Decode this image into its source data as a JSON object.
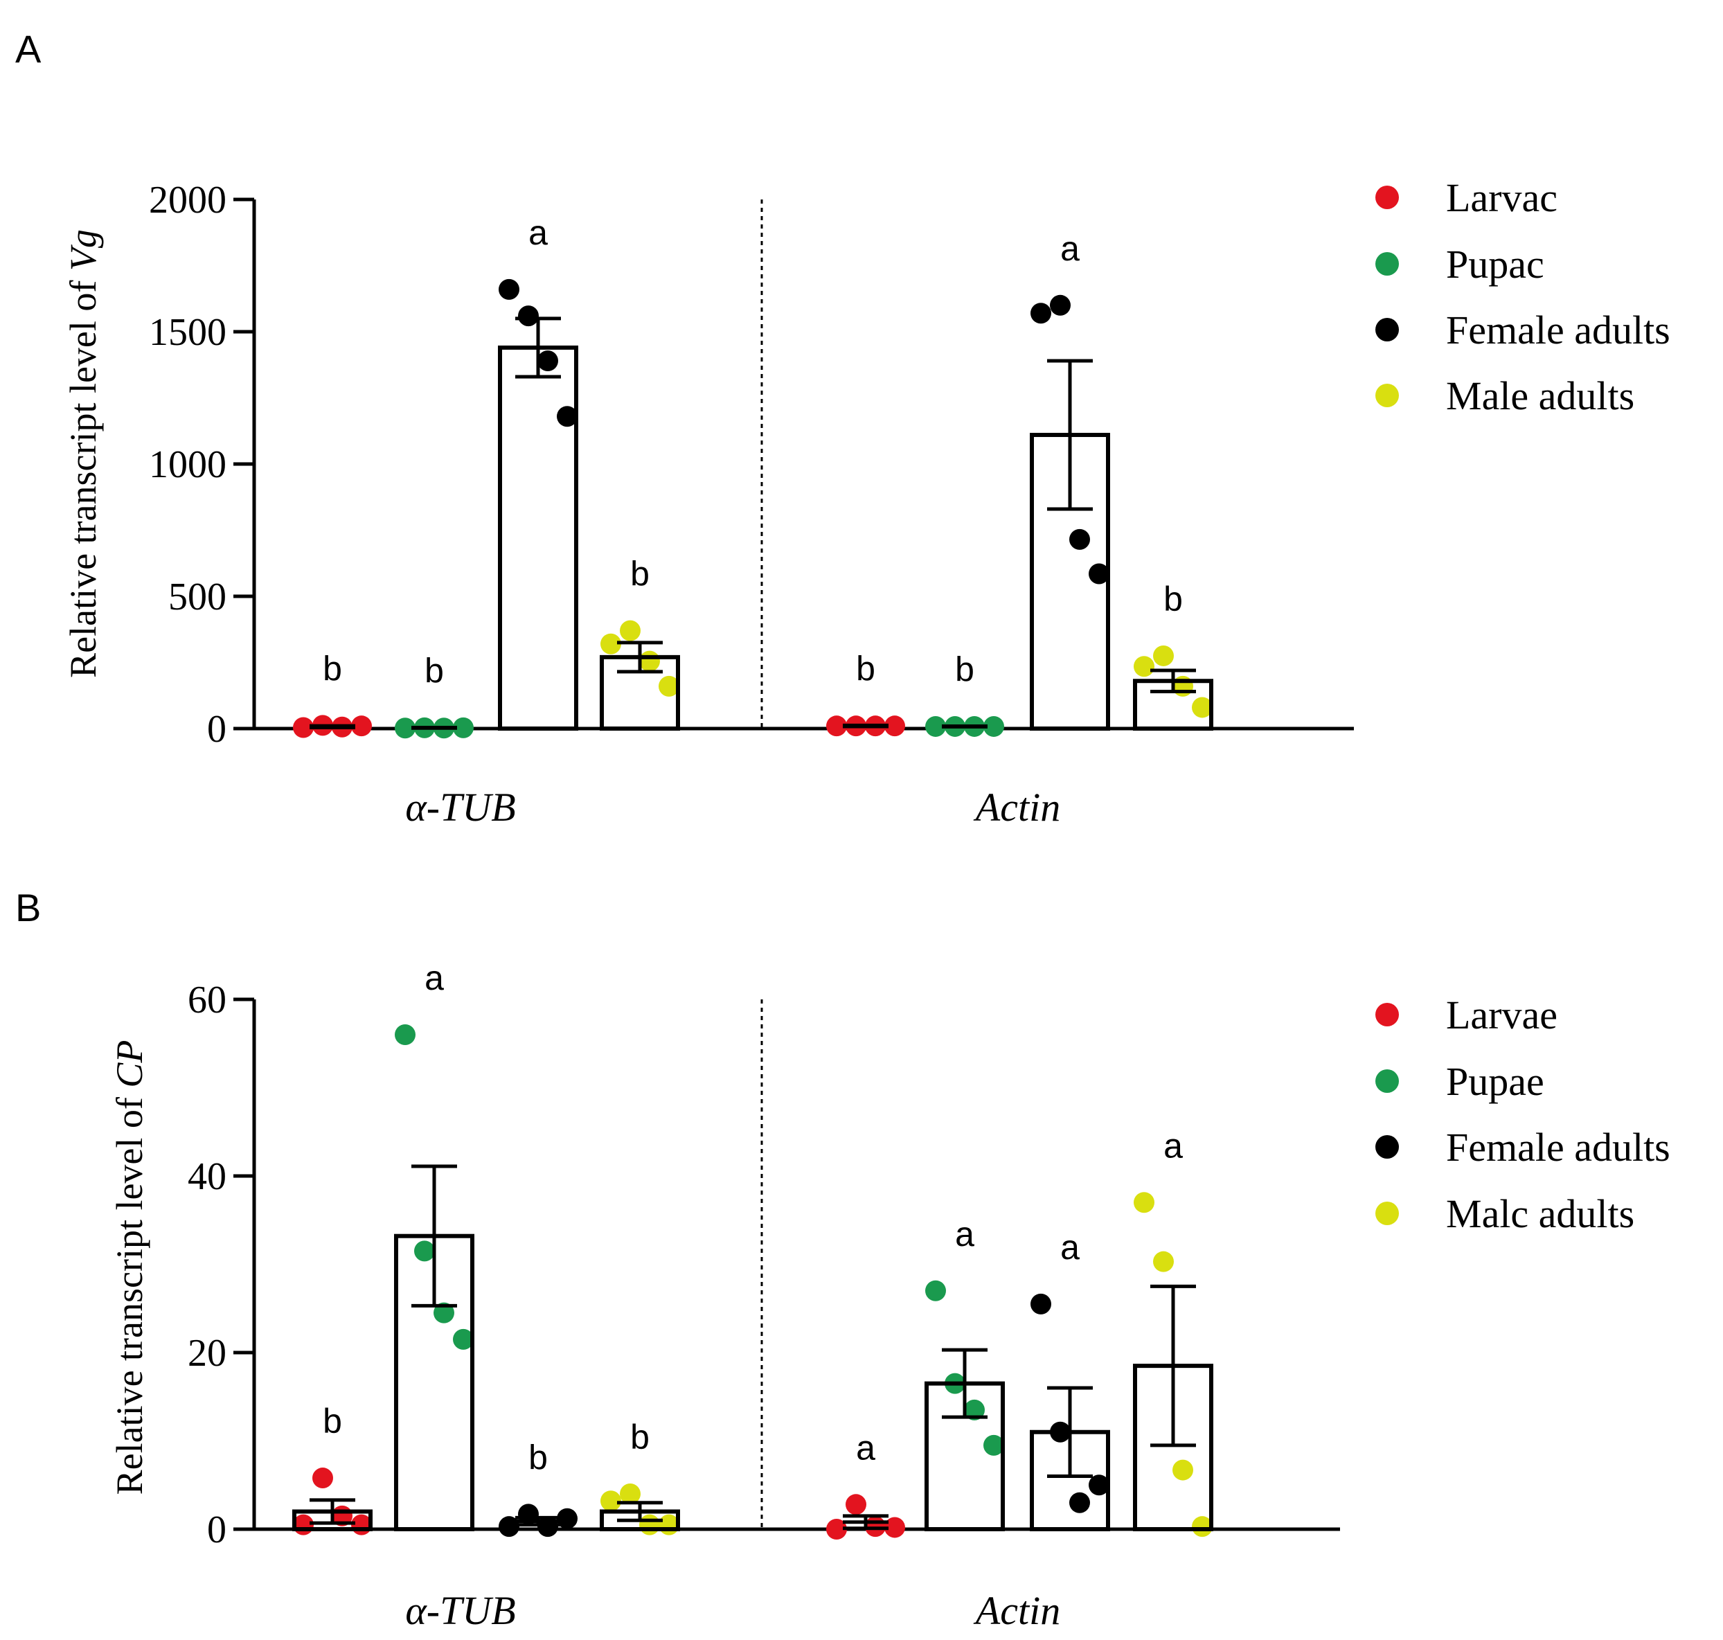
{
  "colors": {
    "larvae": "#e3141f",
    "pupae": "#1a9a4e",
    "female": "#000000",
    "male": "#d9df10"
  },
  "chart_data": [
    {
      "type": "bar",
      "panel": "A",
      "ylabel_prefix": "Relative transcript level of ",
      "ylabel_gene": "Vg",
      "ylim": [
        0,
        2000
      ],
      "yticks": [
        "0",
        "500",
        "1000",
        "1500",
        "2000"
      ],
      "ytick_values": [
        0,
        500,
        1000,
        1500,
        2000
      ],
      "groups": [
        "α-TUB",
        "Actin"
      ],
      "legend": [
        "Larvac",
        "Pupac",
        "Female adults",
        "Male adults"
      ],
      "series_keys": [
        "larvae",
        "pupae",
        "female",
        "male"
      ],
      "bars": [
        {
          "group": 0,
          "series": 0,
          "mean": 7,
          "sem": 3,
          "letter": "b",
          "points": [
            4,
            12,
            6,
            10
          ],
          "show_bar": false
        },
        {
          "group": 0,
          "series": 1,
          "mean": 3,
          "sem": 1,
          "letter": "b",
          "points": [
            2,
            3,
            2,
            3
          ],
          "show_bar": false
        },
        {
          "group": 0,
          "series": 2,
          "mean": 1440,
          "sem": 110,
          "letter": "a",
          "points": [
            1660,
            1560,
            1390,
            1180
          ],
          "show_bar": true
        },
        {
          "group": 0,
          "series": 3,
          "mean": 270,
          "sem": 55,
          "letter": "b",
          "points": [
            320,
            370,
            255,
            160
          ],
          "show_bar": true
        },
        {
          "group": 1,
          "series": 0,
          "mean": 10,
          "sem": 2,
          "letter": "b",
          "points": [
            10,
            10,
            10,
            10
          ],
          "show_bar": false
        },
        {
          "group": 1,
          "series": 1,
          "mean": 8,
          "sem": 1,
          "letter": "b",
          "points": [
            8,
            8,
            8,
            8
          ],
          "show_bar": false
        },
        {
          "group": 1,
          "series": 2,
          "mean": 1110,
          "sem": 280,
          "letter": "a",
          "points": [
            1570,
            1600,
            715,
            585
          ],
          "show_bar": true
        },
        {
          "group": 1,
          "series": 3,
          "mean": 180,
          "sem": 40,
          "letter": "b",
          "points": [
            235,
            275,
            160,
            80
          ],
          "show_bar": true
        }
      ]
    },
    {
      "type": "bar",
      "panel": "B",
      "ylabel_prefix": "Relative transcript level of ",
      "ylabel_gene": "CP",
      "ylim": [
        0,
        60
      ],
      "yticks": [
        "0",
        "20",
        "40",
        "60"
      ],
      "ytick_values": [
        0,
        20,
        40,
        60
      ],
      "groups": [
        "α-TUB",
        "Actin"
      ],
      "legend": [
        "Larvae",
        "Pupae",
        "Female adults",
        "Malc adults"
      ],
      "series_keys": [
        "larvae",
        "pupae",
        "female",
        "male"
      ],
      "bars": [
        {
          "group": 0,
          "series": 0,
          "mean": 2.0,
          "sem": 1.3,
          "letter": "b",
          "points": [
            0.5,
            5.8,
            1.5,
            0.5
          ],
          "show_bar": true
        },
        {
          "group": 0,
          "series": 1,
          "mean": 33.2,
          "sem": 7.9,
          "letter": "a",
          "points": [
            56.0,
            31.5,
            24.5,
            21.5
          ],
          "show_bar": true
        },
        {
          "group": 0,
          "series": 2,
          "mean": 0.9,
          "sem": 0.4,
          "letter": "b",
          "points": [
            0.3,
            1.7,
            0.3,
            1.2
          ],
          "show_bar": false
        },
        {
          "group": 0,
          "series": 3,
          "mean": 2.0,
          "sem": 1.0,
          "letter": "b",
          "points": [
            3.2,
            4.0,
            0.5,
            0.5
          ],
          "show_bar": true
        },
        {
          "group": 1,
          "series": 0,
          "mean": 0.8,
          "sem": 0.7,
          "letter": "a",
          "points": [
            0.0,
            2.8,
            0.3,
            0.2
          ],
          "show_bar": false
        },
        {
          "group": 1,
          "series": 1,
          "mean": 16.5,
          "sem": 3.8,
          "letter": "a",
          "points": [
            27.0,
            16.5,
            13.5,
            9.5
          ],
          "show_bar": true
        },
        {
          "group": 1,
          "series": 2,
          "mean": 11.0,
          "sem": 5.0,
          "letter": "a",
          "points": [
            25.5,
            11.0,
            3.0,
            5.0
          ],
          "show_bar": true
        },
        {
          "group": 1,
          "series": 3,
          "mean": 18.5,
          "sem": 9.0,
          "letter": "a",
          "points": [
            37.0,
            30.3,
            6.7,
            0.3
          ],
          "show_bar": true
        }
      ]
    }
  ]
}
